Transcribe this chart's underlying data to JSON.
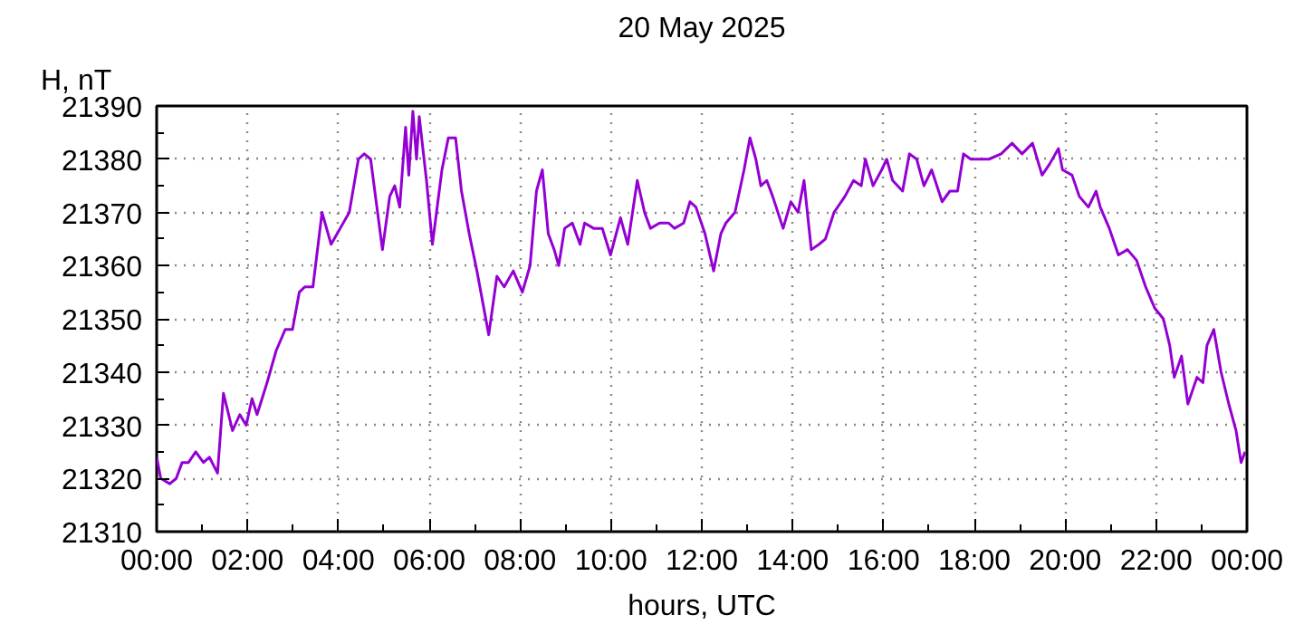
{
  "chart_data": {
    "type": "line",
    "title": "20 May 2025",
    "xlabel": "hours, UTC",
    "ylabel": "H, nT",
    "xlim": [
      0,
      24
    ],
    "ylim": [
      21310,
      21390
    ],
    "xticks": [
      {
        "value": 0,
        "label": "00:00"
      },
      {
        "value": 2,
        "label": "02:00"
      },
      {
        "value": 4,
        "label": "04:00"
      },
      {
        "value": 6,
        "label": "06:00"
      },
      {
        "value": 8,
        "label": "08:00"
      },
      {
        "value": 10,
        "label": "10:00"
      },
      {
        "value": 12,
        "label": "12:00"
      },
      {
        "value": 14,
        "label": "14:00"
      },
      {
        "value": 16,
        "label": "16:00"
      },
      {
        "value": 18,
        "label": "18:00"
      },
      {
        "value": 20,
        "label": "20:00"
      },
      {
        "value": 22,
        "label": "22:00"
      },
      {
        "value": 24,
        "label": "00:00"
      }
    ],
    "yticks": [
      21310,
      21320,
      21330,
      21340,
      21350,
      21360,
      21370,
      21380,
      21390
    ],
    "grid": true,
    "marker": "none",
    "line_style": "solid",
    "series": [
      {
        "color": "#9400d3",
        "x": [
          0.0,
          0.09,
          0.29,
          0.43,
          0.56,
          0.7,
          0.86,
          1.03,
          1.16,
          1.34,
          1.47,
          1.67,
          1.83,
          1.97,
          2.1,
          2.21,
          2.43,
          2.63,
          2.83,
          2.99,
          3.14,
          3.26,
          3.44,
          3.64,
          3.84,
          4.04,
          4.24,
          4.44,
          4.57,
          4.71,
          4.97,
          5.13,
          5.24,
          5.35,
          5.48,
          5.55,
          5.64,
          5.72,
          5.78,
          5.94,
          6.07,
          6.28,
          6.42,
          6.58,
          6.71,
          6.88,
          7.05,
          7.31,
          7.49,
          7.65,
          7.85,
          8.05,
          8.22,
          8.36,
          8.49,
          8.62,
          8.75,
          8.85,
          8.98,
          9.15,
          9.32,
          9.42,
          9.62,
          9.81,
          9.99,
          10.21,
          10.37,
          10.58,
          10.74,
          10.87,
          11.07,
          11.27,
          11.4,
          11.6,
          11.74,
          11.87,
          12.07,
          12.26,
          12.42,
          12.53,
          12.73,
          12.93,
          13.06,
          13.19,
          13.3,
          13.43,
          13.56,
          13.79,
          13.96,
          14.12,
          14.25,
          14.41,
          14.58,
          14.72,
          14.91,
          15.15,
          15.34,
          15.51,
          15.6,
          15.77,
          15.96,
          16.07,
          16.2,
          16.42,
          16.57,
          16.73,
          16.89,
          17.06,
          17.29,
          17.46,
          17.63,
          17.76,
          17.92,
          18.12,
          18.32,
          18.59,
          18.83,
          19.05,
          19.28,
          19.49,
          19.65,
          19.85,
          19.94,
          20.15,
          20.31,
          20.51,
          20.68,
          20.77,
          20.97,
          21.17,
          21.37,
          21.57,
          21.77,
          21.97,
          22.16,
          22.3,
          22.4,
          22.56,
          22.7,
          22.9,
          23.03,
          23.12,
          23.27,
          23.43,
          23.6,
          23.76,
          23.87,
          23.96
        ],
        "values": [
          21324,
          21320,
          21319,
          21320,
          21323,
          21323,
          21325,
          21323,
          21324,
          21321,
          21336,
          21329,
          21332,
          21330,
          21335,
          21332,
          21338,
          21344,
          21348,
          21348,
          21355,
          21356,
          21356,
          21370,
          21364,
          21367,
          21370,
          21380,
          21381,
          21380,
          21363,
          21373,
          21375,
          21371,
          21386,
          21377,
          21389,
          21380,
          21388,
          21376,
          21364,
          21378,
          21384,
          21384,
          21374,
          21366,
          21359,
          21347,
          21358,
          21356,
          21359,
          21355,
          21360,
          21374,
          21378,
          21366,
          21363,
          21360,
          21367,
          21368,
          21364,
          21368,
          21367,
          21367,
          21362,
          21369,
          21364,
          21376,
          21370,
          21367,
          21368,
          21368,
          21367,
          21368,
          21372,
          21371,
          21366,
          21359,
          21366,
          21368,
          21370,
          21378,
          21384,
          21380,
          21375,
          21376,
          21373,
          21367,
          21372,
          21370,
          21376,
          21363,
          21364,
          21365,
          21370,
          21373,
          21376,
          21375,
          21380,
          21375,
          21378,
          21380,
          21376,
          21374,
          21381,
          21380,
          21375,
          21378,
          21372,
          21374,
          21374,
          21381,
          21380,
          21380,
          21380,
          21381,
          21383,
          21381,
          21383,
          21377,
          21379,
          21382,
          21378,
          21377,
          21373,
          21371,
          21374,
          21371,
          21367,
          21362,
          21363,
          21361,
          21356,
          21352,
          21350,
          21345,
          21339,
          21343,
          21334,
          21339,
          21338,
          21345,
          21348,
          21340,
          21334,
          21329,
          21323,
          21325
        ]
      }
    ]
  }
}
